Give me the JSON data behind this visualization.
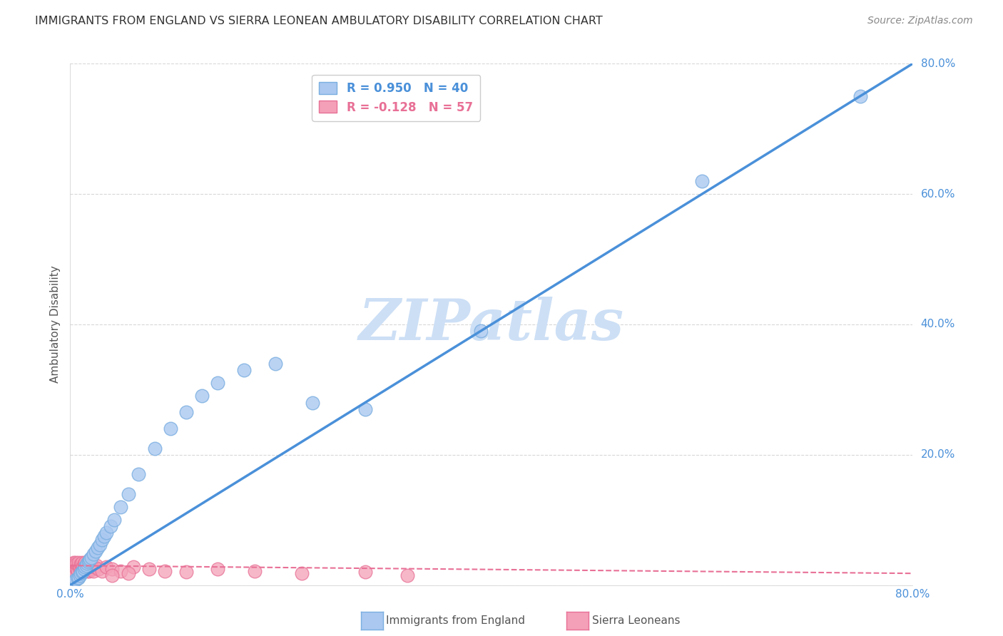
{
  "title": "IMMIGRANTS FROM ENGLAND VS SIERRA LEONEAN AMBULATORY DISABILITY CORRELATION CHART",
  "source": "Source: ZipAtlas.com",
  "ylabel": "Ambulatory Disability",
  "xlim": [
    0,
    0.8
  ],
  "ylim": [
    0,
    0.8
  ],
  "background_color": "#ffffff",
  "watermark_text": "ZIPatlas",
  "watermark_color": "#ccdff5",
  "blue_line_color": "#4a90d9",
  "pink_line_color": "#e87096",
  "blue_marker_color": "#aac8f0",
  "blue_marker_edge": "#7aaee0",
  "pink_marker_color": "#f4a0b8",
  "pink_marker_edge": "#e87096",
  "grid_color": "#d8d8d8",
  "axis_label_color": "#4a90d9",
  "title_color": "#333333",
  "source_color": "#888888",
  "blue_scatter_x": [
    0.003,
    0.005,
    0.007,
    0.008,
    0.009,
    0.01,
    0.011,
    0.012,
    0.013,
    0.014,
    0.015,
    0.016,
    0.017,
    0.018,
    0.019,
    0.02,
    0.022,
    0.024,
    0.026,
    0.028,
    0.03,
    0.032,
    0.034,
    0.038,
    0.042,
    0.048,
    0.055,
    0.065,
    0.08,
    0.095,
    0.11,
    0.125,
    0.14,
    0.165,
    0.195,
    0.23,
    0.28,
    0.39,
    0.6,
    0.75
  ],
  "blue_scatter_y": [
    0.005,
    0.008,
    0.01,
    0.012,
    0.015,
    0.018,
    0.02,
    0.022,
    0.025,
    0.028,
    0.03,
    0.033,
    0.036,
    0.038,
    0.04,
    0.042,
    0.048,
    0.052,
    0.058,
    0.062,
    0.07,
    0.075,
    0.08,
    0.09,
    0.1,
    0.12,
    0.14,
    0.17,
    0.21,
    0.24,
    0.265,
    0.29,
    0.31,
    0.33,
    0.34,
    0.28,
    0.27,
    0.39,
    0.62,
    0.75
  ],
  "pink_scatter_x": [
    0.001,
    0.002,
    0.002,
    0.003,
    0.003,
    0.004,
    0.004,
    0.005,
    0.005,
    0.006,
    0.006,
    0.007,
    0.007,
    0.008,
    0.008,
    0.009,
    0.009,
    0.01,
    0.01,
    0.011,
    0.011,
    0.012,
    0.012,
    0.013,
    0.013,
    0.014,
    0.014,
    0.015,
    0.015,
    0.016,
    0.016,
    0.017,
    0.017,
    0.018,
    0.018,
    0.019,
    0.02,
    0.021,
    0.022,
    0.023,
    0.025,
    0.027,
    0.03,
    0.034,
    0.04,
    0.048,
    0.06,
    0.075,
    0.09,
    0.11,
    0.14,
    0.175,
    0.22,
    0.28,
    0.04,
    0.055,
    0.32
  ],
  "pink_scatter_y": [
    0.03,
    0.028,
    0.032,
    0.025,
    0.035,
    0.03,
    0.022,
    0.028,
    0.035,
    0.025,
    0.032,
    0.028,
    0.022,
    0.03,
    0.035,
    0.025,
    0.028,
    0.032,
    0.022,
    0.03,
    0.035,
    0.025,
    0.028,
    0.032,
    0.022,
    0.03,
    0.035,
    0.025,
    0.028,
    0.022,
    0.03,
    0.028,
    0.032,
    0.025,
    0.022,
    0.028,
    0.03,
    0.025,
    0.022,
    0.028,
    0.03,
    0.025,
    0.022,
    0.028,
    0.025,
    0.022,
    0.028,
    0.025,
    0.022,
    0.02,
    0.025,
    0.022,
    0.018,
    0.02,
    0.015,
    0.018,
    0.015
  ],
  "blue_line_x": [
    0.0,
    0.8
  ],
  "blue_line_y": [
    0.0,
    0.8
  ],
  "pink_line_x": [
    0.0,
    0.8
  ],
  "pink_line_y": [
    0.03,
    0.018
  ]
}
